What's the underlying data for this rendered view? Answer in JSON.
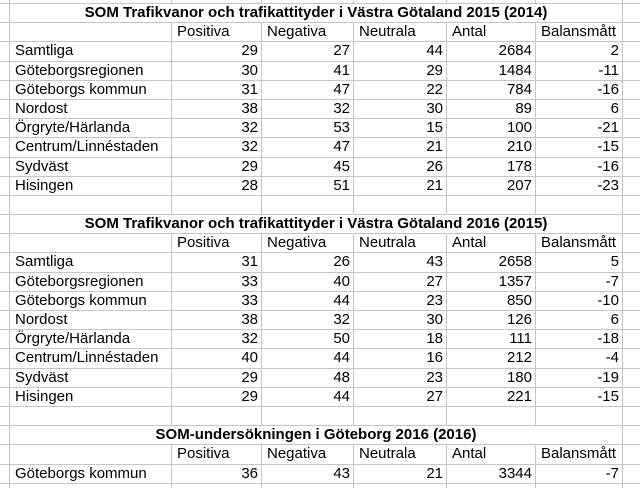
{
  "sheet": {
    "grid_color": "#c6c6c6",
    "tables": [
      {
        "title": "SOM Trafikvanor och trafikattityder i Västra Götaland 2015 (2014)",
        "columns": [
          "Positiva",
          "Negativa",
          "Neutrala",
          "Antal",
          "Balansmått"
        ],
        "rows": [
          {
            "label": "Samtliga",
            "values": [
              "29",
              "27",
              "44",
              "2684",
              "2"
            ]
          },
          {
            "label": "Göteborgsregionen",
            "values": [
              "30",
              "41",
              "29",
              "1484",
              "-11"
            ]
          },
          {
            "label": "Göteborgs kommun",
            "values": [
              "31",
              "47",
              "22",
              "784",
              "-16"
            ]
          },
          {
            "label": "Nordost",
            "values": [
              "38",
              "32",
              "30",
              "89",
              "6"
            ]
          },
          {
            "label": "Örgryte/Härlanda",
            "values": [
              "32",
              "53",
              "15",
              "100",
              "-21"
            ]
          },
          {
            "label": "Centrum/Linnéstaden",
            "values": [
              "32",
              "47",
              "21",
              "210",
              "-15"
            ]
          },
          {
            "label": "Sydväst",
            "values": [
              "29",
              "45",
              "26",
              "178",
              "-16"
            ]
          },
          {
            "label": "Hisingen",
            "values": [
              "28",
              "51",
              "21",
              "207",
              "-23"
            ]
          }
        ]
      },
      {
        "title": "SOM Trafikvanor och trafikattityder i Västra Götaland 2016 (2015)",
        "columns": [
          "Positiva",
          "Negativa",
          "Neutrala",
          "Antal",
          "Balansmått"
        ],
        "rows": [
          {
            "label": "Samtliga",
            "values": [
              "31",
              "26",
              "43",
              "2658",
              "5"
            ]
          },
          {
            "label": "Göteborgsregionen",
            "values": [
              "33",
              "40",
              "27",
              "1357",
              "-7"
            ]
          },
          {
            "label": "Göteborgs kommun",
            "values": [
              "33",
              "44",
              "23",
              "850",
              "-10"
            ]
          },
          {
            "label": "Nordost",
            "values": [
              "38",
              "32",
              "30",
              "126",
              "6"
            ]
          },
          {
            "label": "Örgryte/Härlanda",
            "values": [
              "32",
              "50",
              "18",
              "111",
              "-18"
            ]
          },
          {
            "label": "Centrum/Linnéstaden",
            "values": [
              "40",
              "44",
              "16",
              "212",
              "-4"
            ]
          },
          {
            "label": "Sydväst",
            "values": [
              "29",
              "48",
              "23",
              "180",
              "-19"
            ]
          },
          {
            "label": "Hisingen",
            "values": [
              "29",
              "44",
              "27",
              "221",
              "-15"
            ]
          }
        ]
      },
      {
        "title": "SOM-undersökningen i Göteborg 2016 (2016)",
        "columns": [
          "Positiva",
          "Negativa",
          "Neutrala",
          "Antal",
          "Balansmått"
        ],
        "rows": [
          {
            "label": "Göteborgs kommun",
            "values": [
              "36",
              "43",
              "21",
              "3344",
              "-7"
            ]
          }
        ]
      }
    ]
  }
}
